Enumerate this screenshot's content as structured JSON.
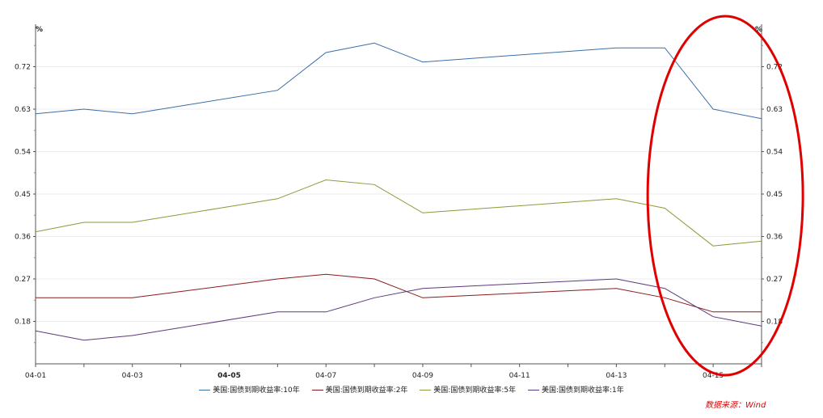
{
  "chart_data": {
    "type": "line",
    "x": [
      "04-01",
      "04-02",
      "04-03",
      "04-06",
      "04-07",
      "04-08",
      "04-09",
      "04-13",
      "04-14",
      "04-15",
      "04-16"
    ],
    "x_tick_labels": [
      "04-01",
      "04-03",
      "04-05",
      "04-07",
      "04-09",
      "04-11",
      "04-13",
      "04-15"
    ],
    "bold_tick": "04-05",
    "ylim": [
      0.09,
      0.81
    ],
    "y_ticks": [
      0.18,
      0.27,
      0.36,
      0.45,
      0.54,
      0.63,
      0.72
    ],
    "y_tick_labels": [
      "0.18",
      "0.27",
      "0.36",
      "0.45",
      "0.54",
      "0.63",
      "0.72"
    ],
    "left_unit": "%",
    "right_unit": "%",
    "grid": true,
    "legend_position": "bottom",
    "series": [
      {
        "name": "美国:国债到期收益率:10年",
        "color": "#3a6ea8",
        "values": [
          0.62,
          0.63,
          0.62,
          0.67,
          0.75,
          0.77,
          0.73,
          0.76,
          0.76,
          0.63,
          0.61
        ]
      },
      {
        "name": "美国:国债到期收益率:2年",
        "color": "#8b1a1a",
        "values": [
          0.23,
          0.23,
          0.23,
          0.27,
          0.28,
          0.27,
          0.23,
          0.25,
          0.23,
          0.2,
          0.2
        ]
      },
      {
        "name": "美国:国债到期收益率:5年",
        "color": "#8a9a3a",
        "values": [
          0.37,
          0.39,
          0.39,
          0.44,
          0.48,
          0.47,
          0.41,
          0.44,
          0.42,
          0.34,
          0.35
        ]
      },
      {
        "name": "美国:国债到期收益率:1年",
        "color": "#5a3a7a",
        "values": [
          0.16,
          0.14,
          0.15,
          0.2,
          0.2,
          0.23,
          0.25,
          0.27,
          0.25,
          0.19,
          0.17
        ]
      }
    ],
    "annotation": {
      "shape": "ellipse",
      "color": "#e00000"
    }
  },
  "legend": {
    "items": [
      "美国:国债到期收益率:10年",
      "美国:国债到期收益率:2年",
      "美国:国债到期收益率:5年",
      "美国:国债到期收益率:1年"
    ]
  },
  "source": "数据来源：Wind"
}
